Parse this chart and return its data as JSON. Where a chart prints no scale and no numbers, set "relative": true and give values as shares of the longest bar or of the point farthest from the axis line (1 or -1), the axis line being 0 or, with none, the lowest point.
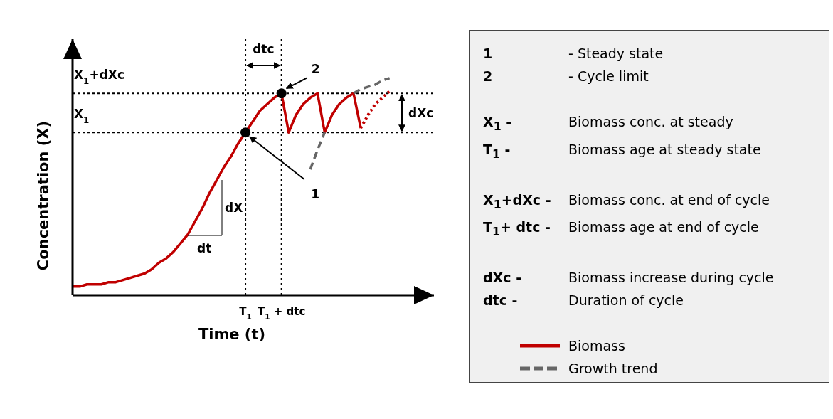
{
  "chart_data": {
    "type": "line",
    "relative": true,
    "xlabel": "Time (t)",
    "ylabel": "Concentration (X)",
    "tick_labels": "x",
    "marker": "none",
    "legend": "right",
    "categories": [
      null,
      null,
      null,
      null,
      null,
      null,
      null,
      null,
      null,
      null,
      null,
      null,
      null,
      null,
      null,
      null,
      null,
      null,
      null,
      null,
      null,
      null,
      null,
      null,
      "T$_{1}$",
      null,
      null,
      null,
      null,
      "T$_{1}$ + dtc",
      null,
      null,
      null,
      null,
      null,
      null,
      null,
      null,
      null,
      null,
      null,
      null,
      null,
      null,
      null
    ],
    "series": [
      {
        "name": "Biomass",
        "color": "#c00000",
        "values": [
          0.04,
          0.04,
          0.05,
          0.05,
          0.05,
          0.06,
          0.06,
          0.07,
          0.08,
          0.09,
          0.1,
          0.12,
          0.15,
          0.17,
          0.2,
          0.24,
          0.28,
          0.34,
          0.4,
          0.47,
          0.53,
          0.59,
          0.64,
          0.7,
          0.75,
          0.8,
          0.85,
          0.88,
          0.91,
          0.93,
          0.75,
          0.83,
          0.88,
          0.91,
          0.93,
          0.75,
          0.83,
          0.88,
          0.91,
          0.93,
          0.77,
          null,
          null,
          null,
          null
        ]
      },
      {
        "color": "#c00000",
        "line_style": "dotted",
        "values": [
          null,
          null,
          null,
          null,
          null,
          null,
          null,
          null,
          null,
          null,
          null,
          null,
          null,
          null,
          null,
          null,
          null,
          null,
          null,
          null,
          null,
          null,
          null,
          null,
          null,
          null,
          null,
          null,
          null,
          null,
          null,
          null,
          null,
          null,
          null,
          null,
          null,
          null,
          null,
          null,
          0.77,
          0.83,
          0.88,
          0.91,
          0.94
        ]
      },
      {
        "name": "Growth trend",
        "color": "#666666",
        "line_style": "dashed",
        "values": [
          null,
          null,
          null,
          null,
          null,
          null,
          null,
          null,
          null,
          null,
          null,
          null,
          null,
          null,
          null,
          null,
          null,
          null,
          null,
          null,
          null,
          null,
          null,
          null,
          null,
          null,
          null,
          null,
          null,
          null,
          null,
          null,
          null,
          0.58,
          0.67,
          0.75,
          null,
          null,
          null,
          0.93,
          0.95,
          0.96,
          0.97,
          0.99,
          1
        ]
      }
    ],
    "ref_lines": [
      {
        "axis": "y",
        "value": 0.93,
        "label": "X$_{1}$+dXc",
        "line_style": "dotted"
      },
      {
        "axis": "y",
        "value": 0.75,
        "label": "X$_{1}$",
        "line_style": "dotted"
      },
      {
        "axis": "x",
        "value": "T$_{1}$",
        "line_style": "dotted"
      },
      {
        "axis": "x",
        "value": "T$_{1}$ + dtc",
        "line_style": "dotted"
      }
    ],
    "annotations": [
      {
        "text": "1",
        "x": "T$_{1}$",
        "y": 0.75
      },
      {
        "text": "2",
        "x": "T$_{1}$ + dtc",
        "y": 0.93
      },
      "dtc",
      "dXc",
      "dX",
      "dt",
      "1",
      "- Steady state",
      "2",
      "- Cycle limit",
      "X$_{1}$ -",
      "Biomass conc. at steady",
      "T$_{1}$ -",
      "Biomass age at steady state",
      "X$_{1}$+dXc -",
      "Biomass conc. at end of cycle",
      "T$_{1}$+ dtc -",
      "Biomass age at end of cycle",
      "dXc -",
      "Biomass increase during cycle",
      "dtc -",
      "Duration of cycle"
    ]
  }
}
